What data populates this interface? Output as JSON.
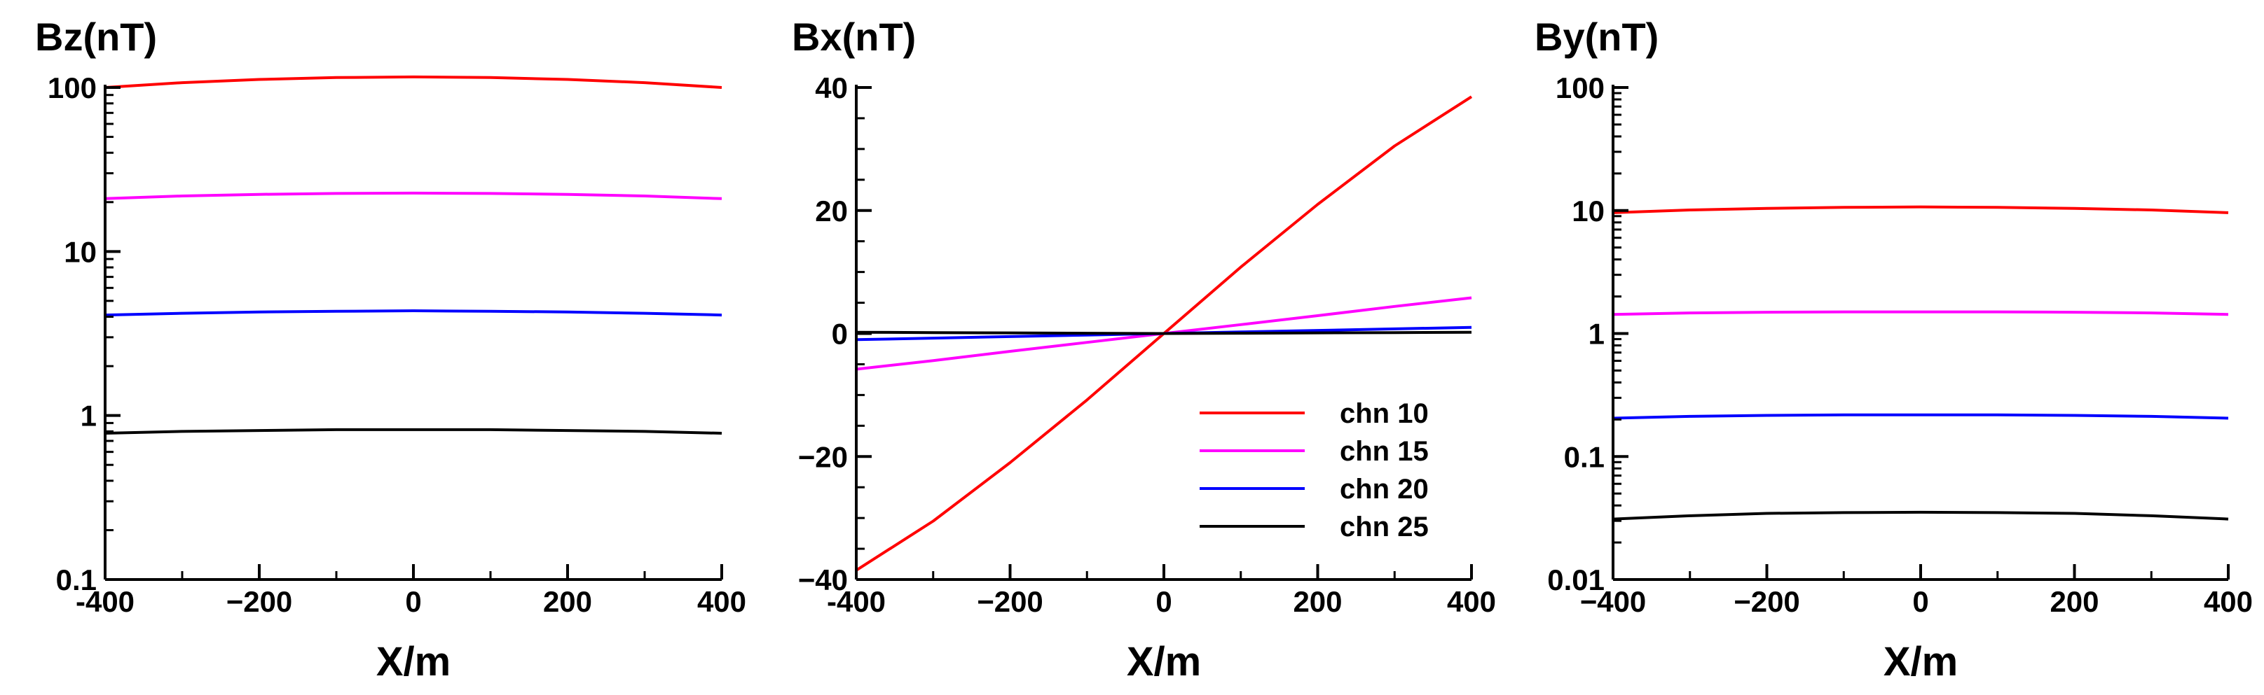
{
  "chart_data": [
    {
      "id": "bz",
      "type": "line",
      "title": "Bz(nT)",
      "xlabel": "X/m",
      "ylabel": "",
      "xscale": "linear",
      "yscale": "log",
      "xlim": [
        -400,
        400
      ],
      "ylim": [
        0.1,
        100
      ],
      "xticks": [
        -400,
        -200,
        0,
        200,
        400
      ],
      "xtick_labels": [
        "-400",
        "−200",
        "0",
        "200",
        "400"
      ],
      "yticks": [
        0.1,
        1,
        10,
        100
      ],
      "ytick_labels": [
        "0.1",
        "1",
        "10",
        "100"
      ],
      "x": [
        -400,
        -300,
        -200,
        -100,
        0,
        100,
        200,
        300,
        400
      ],
      "series": [
        {
          "name": "chn 10",
          "color": "#ff0000",
          "values": [
            100,
            107,
            112,
            115,
            116,
            115,
            112,
            107,
            100
          ]
        },
        {
          "name": "chn 15",
          "color": "#ff00ff",
          "values": [
            21.0,
            21.8,
            22.3,
            22.6,
            22.7,
            22.6,
            22.3,
            21.8,
            21.0
          ]
        },
        {
          "name": "chn 20",
          "color": "#0000ff",
          "values": [
            4.1,
            4.2,
            4.28,
            4.32,
            4.35,
            4.32,
            4.28,
            4.2,
            4.1
          ]
        },
        {
          "name": "chn 25",
          "color": "#000000",
          "values": [
            0.78,
            0.8,
            0.81,
            0.82,
            0.82,
            0.82,
            0.81,
            0.8,
            0.78
          ]
        }
      ]
    },
    {
      "id": "bx",
      "type": "line",
      "title": "Bx(nT)",
      "xlabel": "X/m",
      "ylabel": "",
      "xscale": "linear",
      "yscale": "linear",
      "xlim": [
        -400,
        400
      ],
      "ylim": [
        -40,
        40
      ],
      "xticks": [
        -400,
        -200,
        0,
        200,
        400
      ],
      "xtick_labels": [
        "-400",
        "−200",
        "0",
        "200",
        "400"
      ],
      "yticks": [
        -40,
        -20,
        0,
        20,
        40
      ],
      "ytick_labels": [
        "−40",
        "−20",
        "0",
        "20",
        "40"
      ],
      "x": [
        -400,
        -300,
        -200,
        -100,
        0,
        100,
        200,
        300,
        400
      ],
      "series": [
        {
          "name": "chn 10",
          "color": "#ff0000",
          "values": [
            -38.5,
            -30.5,
            -21.0,
            -10.8,
            0,
            10.8,
            21.0,
            30.5,
            38.5
          ]
        },
        {
          "name": "chn 15",
          "color": "#ff00ff",
          "values": [
            -5.8,
            -4.4,
            -2.9,
            -1.45,
            0,
            1.45,
            2.9,
            4.4,
            5.8
          ]
        },
        {
          "name": "chn 20",
          "color": "#0000ff",
          "values": [
            -1.0,
            -0.75,
            -0.5,
            -0.25,
            0,
            0.25,
            0.5,
            0.75,
            1.0
          ]
        },
        {
          "name": "chn 25",
          "color": "#000000",
          "values": [
            0.2,
            0.15,
            0.1,
            0.05,
            0,
            0.05,
            0.1,
            0.15,
            0.2
          ]
        }
      ],
      "legend": {
        "position": "lower-right",
        "entries": [
          "chn 10",
          "chn 15",
          "chn 20",
          "chn 25"
        ]
      }
    },
    {
      "id": "by",
      "type": "line",
      "title": "By(nT)",
      "xlabel": "X/m",
      "ylabel": "",
      "xscale": "linear",
      "yscale": "log",
      "xlim": [
        -400,
        400
      ],
      "ylim": [
        0.01,
        100
      ],
      "xticks": [
        -400,
        -200,
        0,
        200,
        400
      ],
      "xtick_labels": [
        "−400",
        "−200",
        "0",
        "200",
        "400"
      ],
      "yticks": [
        0.01,
        0.1,
        1,
        10,
        100
      ],
      "ytick_labels": [
        "0.01",
        "0.1",
        "1",
        "10",
        "100"
      ],
      "x": [
        -400,
        -300,
        -200,
        -100,
        0,
        100,
        200,
        300,
        400
      ],
      "series": [
        {
          "name": "chn 10",
          "color": "#ff0000",
          "values": [
            9.6,
            10.1,
            10.4,
            10.6,
            10.7,
            10.6,
            10.4,
            10.1,
            9.6
          ]
        },
        {
          "name": "chn 15",
          "color": "#ff00ff",
          "values": [
            1.43,
            1.47,
            1.49,
            1.5,
            1.5,
            1.5,
            1.49,
            1.47,
            1.43
          ]
        },
        {
          "name": "chn 20",
          "color": "#0000ff",
          "values": [
            0.205,
            0.212,
            0.216,
            0.218,
            0.218,
            0.218,
            0.216,
            0.212,
            0.205
          ]
        },
        {
          "name": "chn 25",
          "color": "#000000",
          "values": [
            0.031,
            0.033,
            0.0345,
            0.035,
            0.0352,
            0.035,
            0.0345,
            0.033,
            0.031
          ]
        }
      ]
    }
  ]
}
